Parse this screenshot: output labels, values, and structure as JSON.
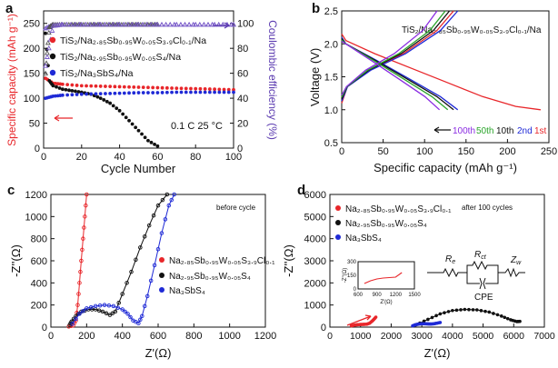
{
  "chart_data": [
    {
      "id": "a",
      "type": "scatter",
      "panel_label": "a",
      "xlabel": "Cycle Number",
      "ylabel": "Specific capacity (mAh g⁻¹)",
      "y2label": "Coulombic efficiency (%)",
      "xlim": [
        0,
        100
      ],
      "ylim": [
        0,
        275
      ],
      "y2lim": [
        0,
        110
      ],
      "xticks": [
        "0",
        "20",
        "40",
        "60",
        "80",
        "100"
      ],
      "yticks": [
        "0",
        "50",
        "100",
        "150",
        "200",
        "250"
      ],
      "y2ticks": [
        "0",
        "20",
        "40",
        "60",
        "80",
        "100"
      ],
      "annotation": "0.1 C 25 °C",
      "series": [
        {
          "name": "TiS₂/Na₂.₈₅Sb₀.₉₅W₀.₀₅S₃.₉Cl₀.₁/Na",
          "color": "#e8262a",
          "x": [
            1,
            5,
            10,
            20,
            30,
            40,
            50,
            60,
            70,
            80,
            90,
            100
          ],
          "capacity": [
            140,
            130,
            128,
            125,
            124,
            123,
            122,
            121,
            120,
            119,
            118,
            117
          ],
          "efficiency": [
            96,
            99,
            99,
            99,
            99,
            99,
            99,
            99,
            99,
            99,
            99,
            99
          ]
        },
        {
          "name": "TiS₂/Na₂.₉₅Sb₀.₉₅W₀.₀₅S₄/Na",
          "color": "#111111",
          "x": [
            1,
            3,
            5,
            10,
            15,
            20,
            25,
            30,
            35,
            40,
            45,
            50,
            55,
            60
          ],
          "capacity": [
            230,
            135,
            125,
            118,
            115,
            112,
            108,
            100,
            90,
            75,
            55,
            35,
            15,
            4
          ],
          "efficiency": [
            60,
            97,
            99,
            99,
            99,
            99,
            99,
            99,
            99,
            99,
            99,
            99,
            99,
            99
          ]
        },
        {
          "name": "TiS₂/Na₃SbS₄/Na",
          "color": "#1f2ad6",
          "x": [
            1,
            5,
            10,
            20,
            30,
            40,
            50,
            60,
            70,
            80,
            90,
            100
          ],
          "capacity": [
            100,
            104,
            106,
            108,
            109,
            110,
            111,
            111,
            112,
            112,
            112,
            112
          ],
          "efficiency": [
            66,
            98,
            99,
            99,
            99,
            99,
            99,
            99,
            99,
            99,
            99,
            99
          ]
        }
      ]
    },
    {
      "id": "b",
      "type": "line",
      "panel_label": "b",
      "title": "TiS₂/Na₂.₈₅Sb₀.₉₅W₀.₀₅S₃.₉Cl₀.₁/Na",
      "xlabel": "Specific capacity (mAh g⁻¹)",
      "ylabel": "Voltage (V)",
      "xlim": [
        0,
        250
      ],
      "ylim": [
        0.5,
        2.5
      ],
      "xticks": [
        "0",
        "50",
        "100",
        "150",
        "200",
        "250"
      ],
      "yticks": [
        "0.5",
        "1.0",
        "1.5",
        "2.0",
        "2.5"
      ],
      "legend": [
        "100th",
        "50th",
        "10th",
        "2nd",
        "1st"
      ],
      "series": [
        {
          "name": "1st",
          "color": "#e8262a",
          "charge_end": 135,
          "discharge_end": 240
        },
        {
          "name": "2nd",
          "color": "#1f2ad6",
          "charge_end": 140,
          "discharge_end": 140
        },
        {
          "name": "10th",
          "color": "#111111",
          "charge_end": 130,
          "discharge_end": 135
        },
        {
          "name": "50th",
          "color": "#2aa52a",
          "charge_end": 125,
          "discharge_end": 128
        },
        {
          "name": "100th",
          "color": "#8a2be2",
          "charge_end": 115,
          "discharge_end": 118
        }
      ]
    },
    {
      "id": "c",
      "type": "scatter",
      "panel_label": "c",
      "xlabel": "Z'(Ω)",
      "ylabel": "-Z''(Ω)",
      "xlim": [
        0,
        1200
      ],
      "ylim": [
        0,
        1200
      ],
      "xticks": [
        "0",
        "200",
        "400",
        "600",
        "800",
        "1000",
        "1200"
      ],
      "yticks": [
        "0",
        "200",
        "400",
        "600",
        "800",
        "1000",
        "1200"
      ],
      "annotation": "before cycle",
      "series": [
        {
          "name": "Na₂.₈₅Sb₀.₉₅W₀.₀₅S₃.₉Cl₀.₁",
          "color": "#e8262a",
          "x": [
            100,
            125,
            140,
            150,
            160,
            170,
            180,
            190,
            200
          ],
          "y": [
            5,
            15,
            60,
            200,
            400,
            600,
            800,
            1000,
            1200
          ]
        },
        {
          "name": "Na₂.₉₅Sb₀.₉₅W₀.₀₅S₄",
          "color": "#111111",
          "x": [
            105,
            115,
            140,
            170,
            210,
            250,
            290,
            330,
            360,
            400,
            450,
            500,
            550,
            600,
            650
          ],
          "y": [
            20,
            50,
            100,
            140,
            160,
            160,
            140,
            110,
            140,
            300,
            500,
            720,
            920,
            1100,
            1200
          ]
        },
        {
          "name": "Na₃SbS₄",
          "color": "#1f2ad6",
          "x": [
            120,
            160,
            200,
            250,
            300,
            350,
            400,
            430,
            460,
            490,
            510,
            540,
            580,
            620,
            660,
            690
          ],
          "y": [
            30,
            120,
            170,
            190,
            200,
            190,
            160,
            120,
            60,
            35,
            100,
            280,
            560,
            850,
            1100,
            1200
          ]
        }
      ]
    },
    {
      "id": "d",
      "type": "scatter",
      "panel_label": "d",
      "xlabel": "Z'(Ω)",
      "ylabel": "-Z''(Ω)",
      "xlim": [
        0,
        7000
      ],
      "ylim": [
        0,
        6000
      ],
      "xticks": [
        "0",
        "1000",
        "2000",
        "3000",
        "4000",
        "5000",
        "6000",
        "7000"
      ],
      "yticks": [
        "0",
        "1000",
        "2000",
        "3000",
        "4000",
        "5000",
        "6000"
      ],
      "annotation": "after 100 cycles",
      "circuit": {
        "re": "R",
        "re_sub": "e",
        "rct": "R",
        "rct_sub": "ct",
        "zw": "Z",
        "zw_sub": "w",
        "cpe": "CPE"
      },
      "inset": {
        "xlabel": "Z'(Ω)",
        "ylabel": "-Z''(Ω)",
        "xticks": [
          "600",
          "900",
          "1200",
          "1500"
        ],
        "yticks": [
          "0",
          "150",
          "300"
        ]
      },
      "series": [
        {
          "name": "Na₂.₈₅Sb₀.₉₅W₀.₀₅S₃.₉Cl₀.₁",
          "color": "#e8262a",
          "x": [
            700,
            800,
            900,
            1000,
            1100,
            1200,
            1300,
            1400,
            1500
          ],
          "y": [
            60,
            90,
            110,
            120,
            125,
            130,
            180,
            300,
            450
          ]
        },
        {
          "name": "Na₂.₉₅Sb₀.₉₅W₀.₀₅S₄",
          "color": "#111111",
          "x": [
            2800,
            3200,
            3600,
            4000,
            4400,
            4800,
            5200,
            5600,
            5900,
            6100,
            6200
          ],
          "y": [
            100,
            350,
            600,
            750,
            800,
            780,
            680,
            500,
            330,
            250,
            260
          ]
        },
        {
          "name": "Na₃SbS₄",
          "color": "#1f2ad6",
          "x": [
            2700,
            2800,
            2900,
            3000,
            3100,
            3200,
            3300,
            3400,
            3500,
            3600
          ],
          "y": [
            60,
            110,
            140,
            150,
            150,
            145,
            140,
            150,
            180,
            210
          ]
        }
      ]
    }
  ]
}
